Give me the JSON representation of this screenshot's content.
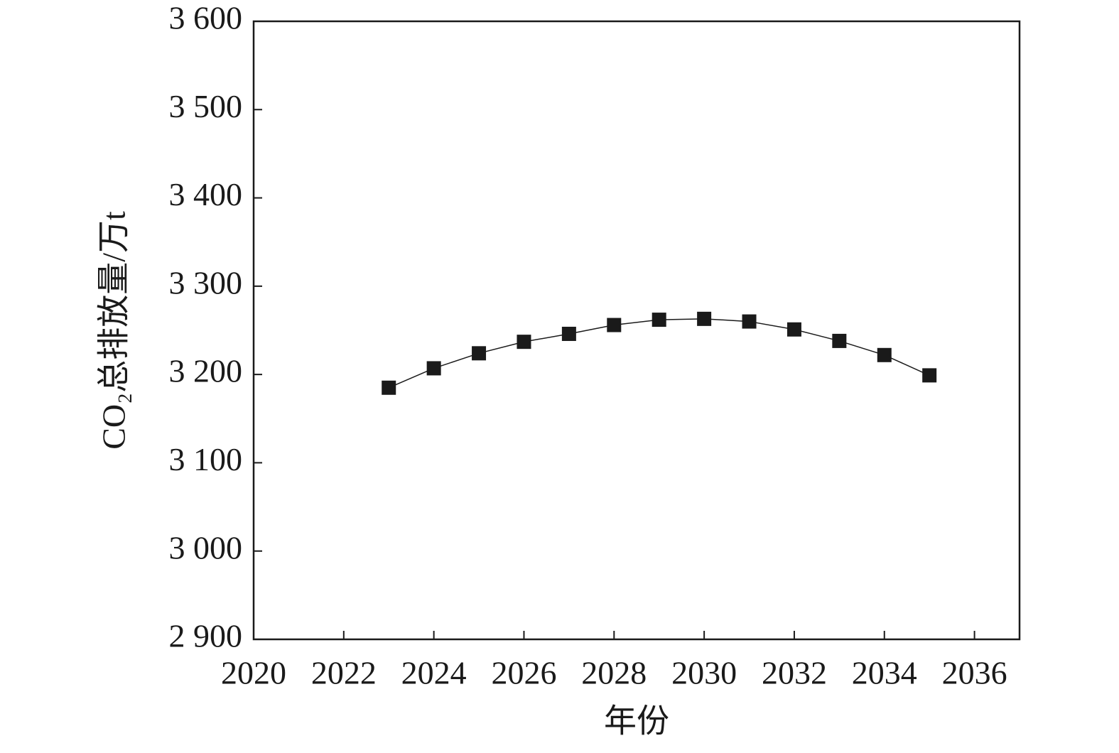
{
  "chart_data": {
    "type": "line",
    "x_label": "年份",
    "y_label": "CO₂总排放量/万t",
    "x": [
      2023,
      2024,
      2025,
      2026,
      2027,
      2028,
      2029,
      2030,
      2031,
      2032,
      2033,
      2034,
      2035
    ],
    "values": [
      3185,
      3207,
      3224,
      3237,
      3246,
      3256,
      3262,
      3263,
      3260,
      3251,
      3238,
      3222,
      3199
    ],
    "color": "#1a1a1a",
    "marker": "square",
    "xlim": [
      2020,
      2037
    ],
    "xticks": [
      2020,
      2022,
      2024,
      2026,
      2028,
      2030,
      2032,
      2034,
      2036
    ],
    "ylim": [
      2900,
      3600
    ],
    "yticks": [
      {
        "value": 2900,
        "label": "2 900"
      },
      {
        "value": 3000,
        "label": "3 000"
      },
      {
        "value": 3100,
        "label": "3 100"
      },
      {
        "value": 3200,
        "label": "3 200"
      },
      {
        "value": 3300,
        "label": "3 300"
      },
      {
        "value": 3400,
        "label": "3 400"
      },
      {
        "value": 3500,
        "label": "3 500"
      },
      {
        "value": 3600,
        "label": "3 600"
      }
    ],
    "grid": false
  }
}
